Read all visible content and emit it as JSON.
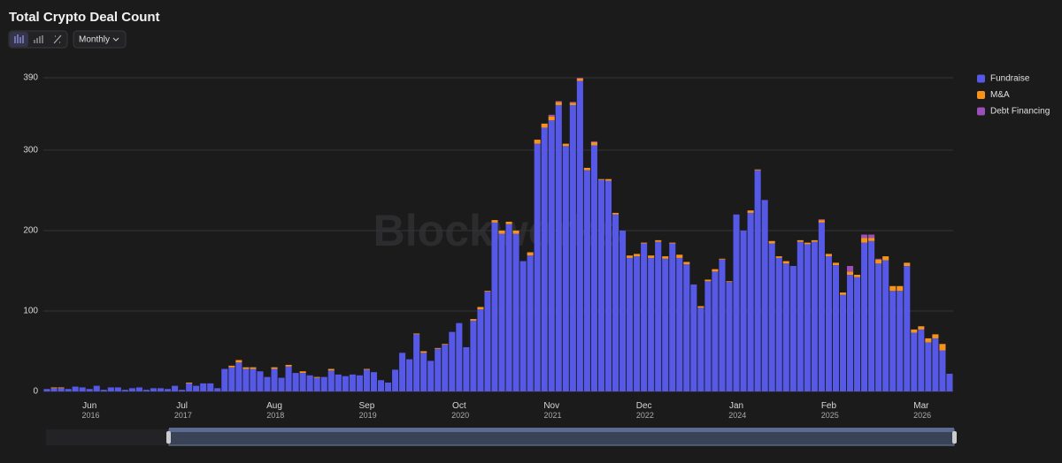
{
  "chart_data": {
    "type": "stacked_bar",
    "title": "Total Crypto Deal Count",
    "interval": "Monthly",
    "watermark": "Blockworks",
    "categories": [
      null,
      null,
      null,
      null,
      null,
      null,
      "Jun 2016",
      null,
      null,
      null,
      null,
      null,
      null,
      null,
      null,
      null,
      null,
      null,
      null,
      "Jul 2017",
      null,
      null,
      null,
      null,
      null,
      null,
      null,
      null,
      null,
      null,
      null,
      null,
      "Aug 2018",
      null,
      null,
      null,
      null,
      null,
      null,
      null,
      null,
      null,
      null,
      null,
      null,
      "Sep 2019",
      null,
      null,
      null,
      null,
      null,
      null,
      null,
      null,
      null,
      null,
      null,
      null,
      "Oct 2020",
      null,
      null,
      null,
      null,
      null,
      null,
      null,
      null,
      null,
      null,
      null,
      null,
      "Nov 2021",
      null,
      null,
      null,
      null,
      null,
      null,
      null,
      null,
      null,
      null,
      null,
      null,
      "Dec 2022",
      null,
      null,
      null,
      null,
      null,
      null,
      null,
      null,
      null,
      null,
      null,
      null,
      "Jan 2024",
      null,
      null,
      null,
      null,
      null,
      null,
      null,
      null,
      null,
      null,
      null,
      null,
      "Feb 2025",
      null,
      null,
      null,
      null,
      null,
      null,
      null,
      null,
      null,
      null,
      null,
      null,
      "Mar 2026",
      null,
      null,
      null,
      null
    ],
    "series": [
      {
        "name": "Fundraise",
        "color": "#5658e6",
        "values": [
          3,
          4,
          4,
          3,
          6,
          5,
          3,
          7,
          2,
          5,
          5,
          2,
          4,
          5,
          2,
          4,
          4,
          3,
          7,
          2,
          10,
          7,
          10,
          10,
          4,
          28,
          30,
          36,
          28,
          28,
          25,
          18,
          28,
          17,
          31,
          23,
          23,
          20,
          17,
          18,
          26,
          21,
          19,
          21,
          20,
          27,
          24,
          14,
          11,
          27,
          48,
          40,
          71,
          48,
          38,
          53,
          58,
          74,
          85,
          55,
          88,
          102,
          124,
          210,
          196,
          208,
          196,
          162,
          169,
          308,
          328,
          337,
          356,
          305,
          356,
          386,
          275,
          306,
          263,
          262,
          220,
          200,
          166,
          168,
          184,
          166,
          186,
          165,
          184,
          166,
          158,
          133,
          104,
          137,
          149,
          164,
          136,
          220,
          200,
          222,
          275,
          238,
          184,
          166,
          159,
          156,
          186,
          183,
          186,
          210,
          168,
          157,
          120,
          145,
          142,
          185,
          187,
          159,
          163,
          125,
          125,
          156,
          73,
          77,
          61,
          66,
          51,
          22
        ]
      },
      {
        "name": "M&A",
        "color": "#f7931a",
        "values": [
          0,
          1,
          1,
          0,
          0,
          0,
          0,
          0,
          0,
          0,
          0,
          0,
          0,
          0,
          0,
          0,
          0,
          0,
          0,
          0,
          1,
          0,
          0,
          0,
          0,
          0,
          2,
          3,
          2,
          2,
          0,
          0,
          2,
          0,
          2,
          0,
          2,
          0,
          1,
          0,
          2,
          0,
          0,
          0,
          0,
          1,
          0,
          0,
          0,
          0,
          0,
          0,
          1,
          2,
          0,
          1,
          1,
          0,
          0,
          0,
          2,
          3,
          1,
          3,
          4,
          3,
          4,
          0,
          4,
          5,
          5,
          5,
          4,
          3,
          3,
          3,
          3,
          4,
          1,
          2,
          2,
          0,
          3,
          3,
          1,
          3,
          2,
          3,
          1,
          4,
          3,
          0,
          2,
          2,
          3,
          1,
          1,
          0,
          0,
          3,
          1,
          0,
          3,
          2,
          3,
          0,
          2,
          2,
          2,
          3,
          3,
          3,
          3,
          4,
          3,
          6,
          4,
          5,
          5,
          6,
          6,
          4,
          4,
          4,
          5,
          5,
          8,
          0
        ]
      },
      {
        "name": "Debt Financing",
        "color": "#9b4fb8",
        "values": [
          0,
          0,
          0,
          0,
          0,
          0,
          0,
          0,
          0,
          0,
          0,
          0,
          0,
          0,
          0,
          0,
          0,
          0,
          0,
          0,
          0,
          0,
          0,
          0,
          0,
          0,
          0,
          0,
          0,
          0,
          0,
          0,
          0,
          0,
          0,
          0,
          0,
          0,
          0,
          0,
          0,
          0,
          0,
          0,
          0,
          0,
          0,
          0,
          0,
          0,
          0,
          0,
          0,
          0,
          0,
          0,
          0,
          0,
          0,
          0,
          0,
          0,
          0,
          0,
          0,
          0,
          0,
          0,
          0,
          0,
          0,
          2,
          1,
          0,
          1,
          1,
          0,
          1,
          0,
          0,
          0,
          0,
          0,
          0,
          0,
          0,
          0,
          0,
          0,
          0,
          0,
          0,
          0,
          0,
          0,
          0,
          0,
          0,
          0,
          0,
          0,
          0,
          0,
          0,
          0,
          0,
          0,
          0,
          0,
          1,
          0,
          0,
          0,
          7,
          0,
          4,
          4,
          1,
          0,
          0,
          0,
          0,
          0,
          0,
          0,
          0,
          0,
          0
        ]
      }
    ],
    "ylim": [
      0,
      390
    ],
    "yticks": [
      0,
      100,
      200,
      300,
      390
    ],
    "grid": true,
    "legend": "top-right"
  }
}
